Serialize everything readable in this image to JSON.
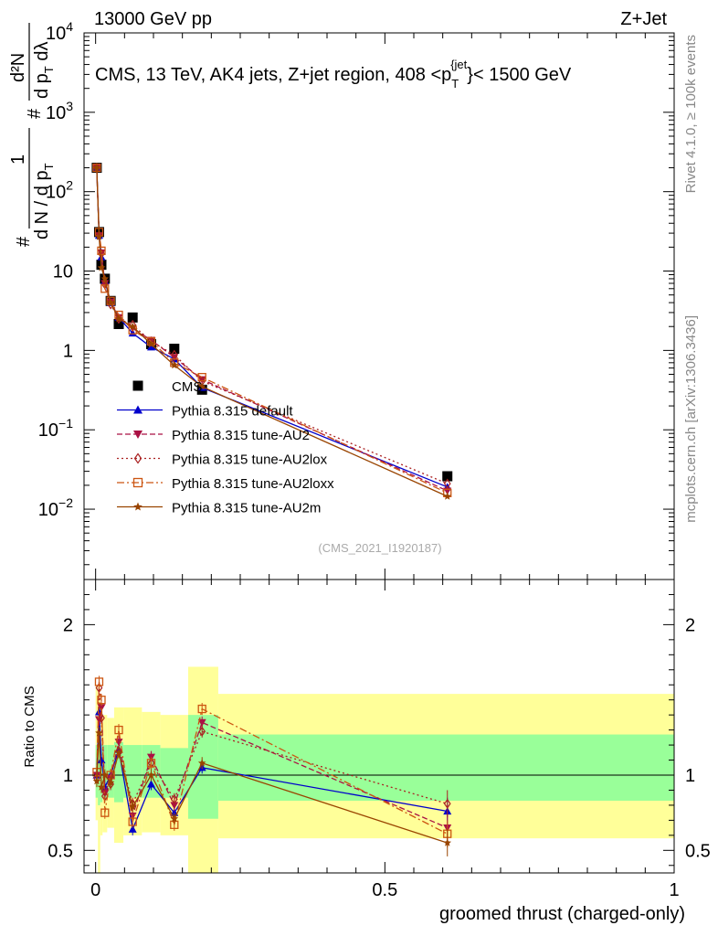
{
  "header": {
    "left": "13000 GeV pp",
    "right": "Z+Jet"
  },
  "side": {
    "rivet": "Rivet 4.1.0, ≥ 100k events",
    "mcplots": "mcplots.cern.ch [arXiv:1306.3436]"
  },
  "chart_data": [
    {
      "type": "scatter",
      "title": "CMS, 13 TeV, AK4 jets, Z+jet region, 408 <p_T^{jet}< 1500 GeV",
      "title_parts": {
        "main": "CMS, 13 TeV, AK4 jets, Z+jet region, 408 <p",
        "sub": "T",
        "sup": "{jet",
        "tail": "}< 1500 GeV"
      },
      "ylabel": "1/N dN/dp_T dλ",
      "ylabel_parts": {
        "hash_top": "#",
        "num": "1",
        "den": "d N / d p",
        "den_sub": "T",
        "hash_right": "#",
        "frac2_num": "d²N",
        "frac2_den": "d p",
        "frac2_den_sub": "T",
        "frac2_den_tail": " dλ"
      },
      "yscale": "log",
      "ylim": [
        0.0013,
        10000
      ],
      "xlim": [
        -0.02,
        1.0
      ],
      "y_ticks": [
        {
          "value": 0.01,
          "base": "10",
          "exp": "−2"
        },
        {
          "value": 0.1,
          "base": "10",
          "exp": "−1"
        },
        {
          "value": 1,
          "base": "1",
          "exp": ""
        },
        {
          "value": 10,
          "base": "10",
          "exp": ""
        },
        {
          "value": 100,
          "base": "10",
          "exp": "2"
        },
        {
          "value": 1000,
          "base": "10",
          "exp": "3"
        },
        {
          "value": 10000,
          "base": "10",
          "exp": "4"
        }
      ],
      "analysis_tag": "(CMS_2021_I1920187)",
      "x": [
        0.002,
        0.006,
        0.01,
        0.016,
        0.026,
        0.04,
        0.064,
        0.096,
        0.136,
        0.184,
        0.608
      ],
      "series": [
        {
          "name": "CMS",
          "color": "#000000",
          "marker": "square",
          "values": [
            200,
            31,
            12,
            8,
            4.2,
            2.15,
            2.6,
            1.2,
            1.05,
            0.32,
            0.026
          ]
        },
        {
          "name": "Pythia 8.315 default",
          "color": "#0000cc",
          "marker": "triangle-up",
          "line": "solid",
          "values": [
            200,
            28,
            15,
            7.5,
            4.0,
            2.6,
            1.65,
            1.1,
            0.78,
            0.34,
            0.019
          ]
        },
        {
          "name": "Pythia 8.315 tune-AU2",
          "color": "#aa1144",
          "marker": "triangle-down",
          "line": "dashed",
          "values": [
            200,
            28,
            17,
            7.0,
            4.1,
            2.6,
            1.9,
            1.35,
            0.82,
            0.43,
            0.017
          ]
        },
        {
          "name": "Pythia 8.315 tune-AU2lox",
          "color": "#aa2222",
          "marker": "diamond",
          "line": "dotted",
          "values": [
            200,
            28,
            16.5,
            6.8,
            3.8,
            2.5,
            2.1,
            1.3,
            0.88,
            0.41,
            0.021
          ]
        },
        {
          "name": "Pythia 8.315 tune-AU2loxx",
          "color": "#cc5511",
          "marker": "square-open",
          "line": "dashdot",
          "values": [
            200,
            31,
            18,
            6.0,
            4.2,
            2.8,
            1.8,
            1.3,
            0.7,
            0.46,
            0.016
          ]
        },
        {
          "name": "Pythia 8.315 tune-AU2m",
          "color": "#994400",
          "marker": "star",
          "line": "solid",
          "values": [
            200,
            27,
            11,
            8.0,
            4.0,
            2.5,
            2.0,
            1.2,
            0.65,
            0.35,
            0.0145
          ]
        }
      ]
    },
    {
      "type": "scatter",
      "ylabel": "Ratio to CMS",
      "xlabel": "groomed thrust (charged-only)",
      "ylim": [
        0.35,
        2.3
      ],
      "xlim": [
        -0.02,
        1.0
      ],
      "y_ticks": [
        0.5,
        1,
        2
      ],
      "y_tick_labels": [
        "0.5",
        "1",
        "2"
      ],
      "x_ticks": [
        0,
        0.5,
        1
      ],
      "x_tick_labels": [
        "0",
        "0.5",
        "1"
      ],
      "x": [
        0.002,
        0.006,
        0.01,
        0.016,
        0.026,
        0.04,
        0.064,
        0.096,
        0.136,
        0.184,
        0.608
      ],
      "bands": [
        {
          "x0": 0.0,
          "x1": 0.004,
          "yellow": [
            0.7,
            1.6
          ],
          "green": [
            0.85,
            1.2
          ]
        },
        {
          "x0": 0.004,
          "x1": 0.008,
          "yellow": [
            0.35,
            1.5
          ],
          "green": [
            0.8,
            1.25
          ]
        },
        {
          "x0": 0.008,
          "x1": 0.012,
          "yellow": [
            0.6,
            1.45
          ],
          "green": [
            0.82,
            1.2
          ]
        },
        {
          "x0": 0.012,
          "x1": 0.02,
          "yellow": [
            0.62,
            1.4
          ],
          "green": [
            0.85,
            1.2
          ]
        },
        {
          "x0": 0.02,
          "x1": 0.032,
          "yellow": [
            0.65,
            1.38
          ],
          "green": [
            0.85,
            1.2
          ]
        },
        {
          "x0": 0.032,
          "x1": 0.048,
          "yellow": [
            0.55,
            1.45
          ],
          "green": [
            0.82,
            1.22
          ]
        },
        {
          "x0": 0.048,
          "x1": 0.08,
          "yellow": [
            0.6,
            1.45
          ],
          "green": [
            0.85,
            1.2
          ]
        },
        {
          "x0": 0.08,
          "x1": 0.112,
          "yellow": [
            0.62,
            1.42
          ],
          "green": [
            0.85,
            1.2
          ]
        },
        {
          "x0": 0.112,
          "x1": 0.16,
          "yellow": [
            0.6,
            1.4
          ],
          "green": [
            0.85,
            1.18
          ]
        },
        {
          "x0": 0.16,
          "x1": 0.212,
          "yellow": [
            0.35,
            1.72
          ],
          "green": [
            0.71,
            1.4
          ]
        },
        {
          "x0": 0.212,
          "x1": 1.0,
          "yellow": [
            0.58,
            1.54
          ],
          "green": [
            0.83,
            1.27
          ]
        }
      ],
      "series": [
        {
          "name": "Pythia 8.315 default",
          "color": "#0000cc",
          "marker": "triangle-up",
          "line": "solid",
          "values": [
            1.0,
            1.42,
            1.1,
            0.92,
            1.0,
            1.17,
            0.64,
            0.94,
            0.75,
            1.05,
            0.76
          ]
        },
        {
          "name": "Pythia 8.315 tune-AU2",
          "color": "#aa1144",
          "marker": "triangle-down",
          "line": "dashed",
          "values": [
            1.0,
            1.37,
            1.45,
            0.88,
            0.98,
            1.22,
            0.73,
            1.12,
            0.8,
            1.35,
            0.65
          ]
        },
        {
          "name": "Pythia 8.315 tune-AU2lox",
          "color": "#aa2222",
          "marker": "diamond",
          "line": "dotted",
          "values": [
            0.98,
            1.58,
            1.38,
            0.86,
            0.94,
            1.16,
            0.81,
            1.08,
            0.84,
            1.29,
            0.81
          ]
        },
        {
          "name": "Pythia 8.315 tune-AU2loxx",
          "color": "#cc5511",
          "marker": "square-open",
          "line": "dashdot",
          "values": [
            1.02,
            1.62,
            1.5,
            0.75,
            1.0,
            1.3,
            0.69,
            1.08,
            0.67,
            1.44,
            0.61
          ]
        },
        {
          "name": "Pythia 8.315 tune-AU2m",
          "color": "#994400",
          "marker": "star",
          "line": "solid",
          "values": [
            0.96,
            1.28,
            0.92,
            1.0,
            0.95,
            1.15,
            0.79,
            1.0,
            0.71,
            1.08,
            0.55
          ]
        }
      ]
    }
  ]
}
